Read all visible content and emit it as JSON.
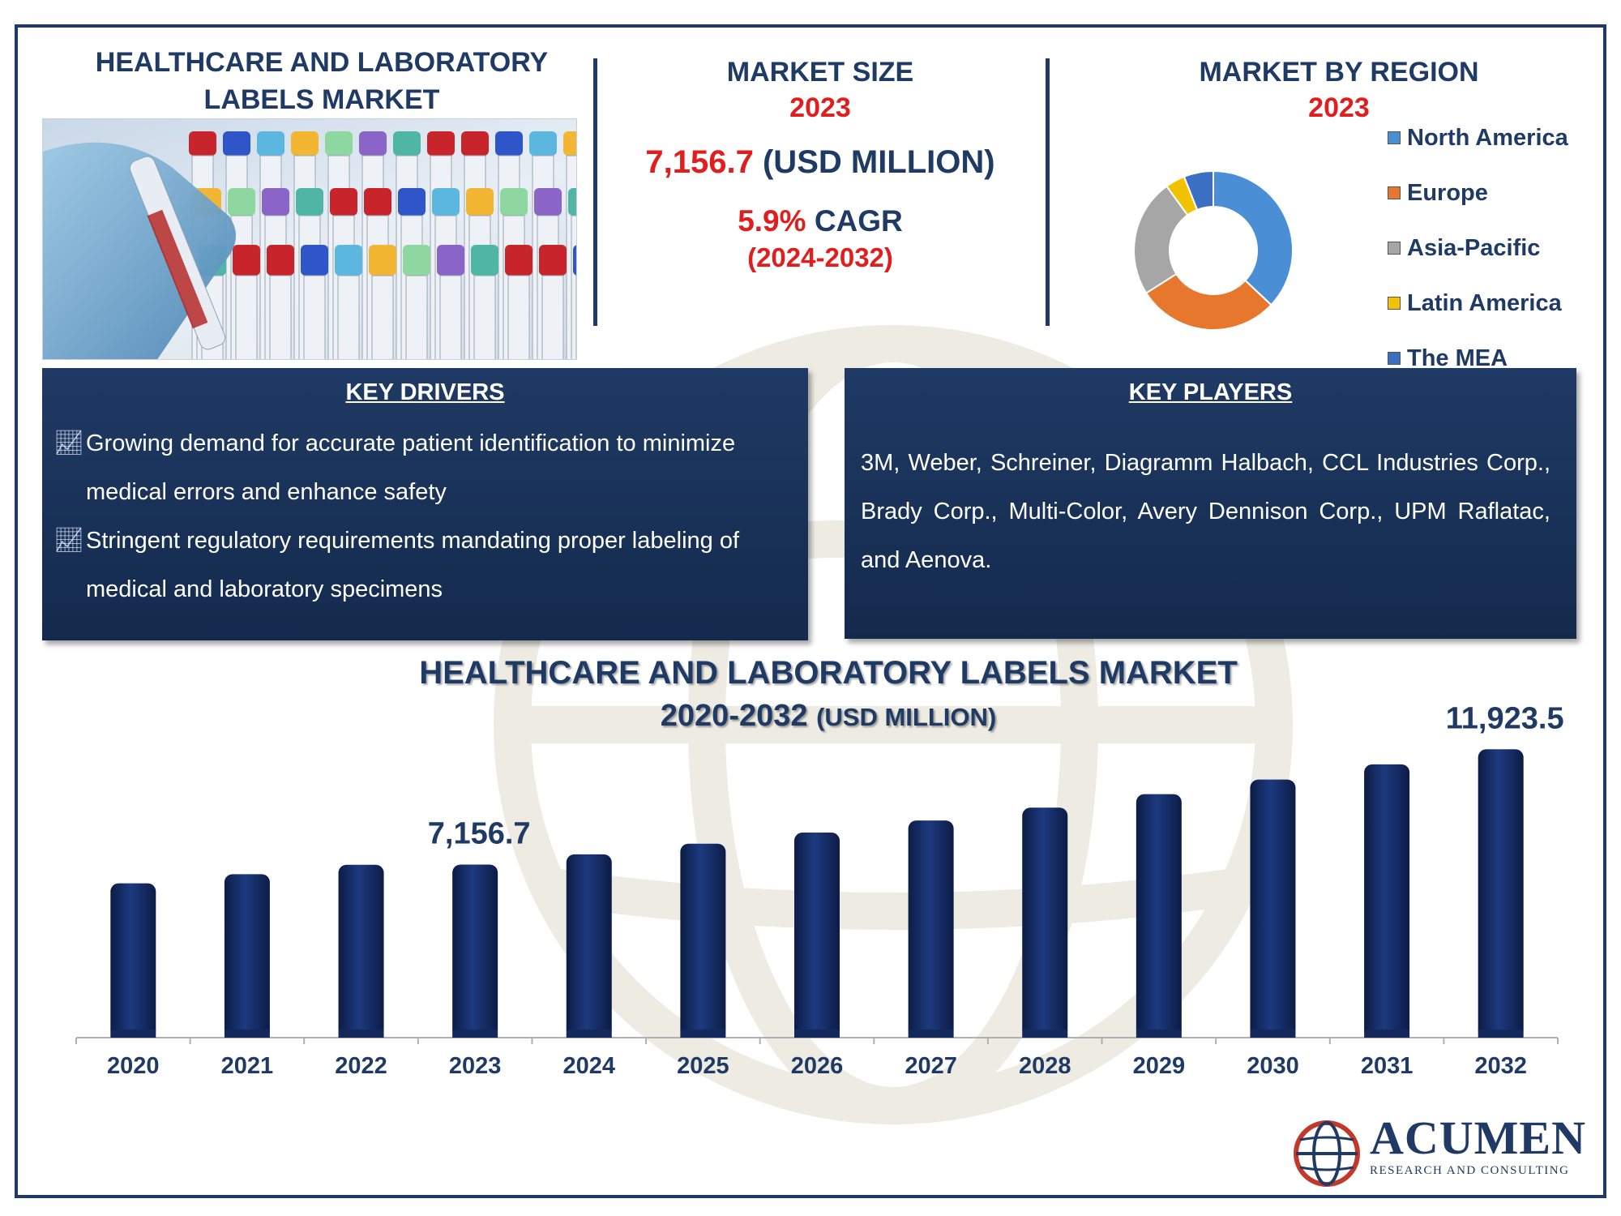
{
  "header": {
    "report_title_line1": "HEALTHCARE AND LABORATORY",
    "report_title_line2": "LABELS MARKET"
  },
  "market_size": {
    "heading": "MARKET SIZE",
    "year": "2023",
    "value": "7,156.7",
    "unit": "(USD MILLION)",
    "cagr_value": "5.9%",
    "cagr_label": "CAGR",
    "cagr_period": "(2024-2032)"
  },
  "region": {
    "heading": "MARKET BY REGION",
    "year": "2023",
    "legend": [
      {
        "label": "North America",
        "color": "#4a8fd6"
      },
      {
        "label": "Europe",
        "color": "#e8772e"
      },
      {
        "label": "Asia-Pacific",
        "color": "#a6a6a6"
      },
      {
        "label": "Latin America",
        "color": "#f2c200"
      },
      {
        "label": "The MEA",
        "color": "#3b6fc4"
      }
    ],
    "shares": [
      37,
      29,
      24,
      4,
      6
    ]
  },
  "drivers": {
    "heading": "KEY DRIVERS",
    "items": [
      "Growing demand for accurate patient identification to minimize medical errors and enhance safety",
      "Stringent regulatory requirements mandating proper labeling of medical and laboratory specimens"
    ]
  },
  "players": {
    "heading": "KEY PLAYERS",
    "text": "3M, Weber, Schreiner, Diagramm Halbach, CCL Industries Corp., Brady Corp., Multi-Color, Avery Dennison Corp., UPM Raflatac, and Aenova."
  },
  "chart_heading": {
    "line1": "HEALTHCARE AND LABORATORY LABELS MARKET",
    "line2_main": "2020-2032",
    "line2_unit": "(USD MILLION)"
  },
  "chart_data": {
    "type": "bar",
    "categories": [
      "2020",
      "2021",
      "2022",
      "2023",
      "2024",
      "2025",
      "2026",
      "2027",
      "2028",
      "2029",
      "2030",
      "2031",
      "2032"
    ],
    "values": [
      6380,
      6760,
      7150,
      7156.7,
      7580,
      8020,
      8480,
      8980,
      9510,
      10070,
      10670,
      11300,
      11923.5
    ],
    "data_labels": {
      "2023": "7,156.7",
      "2032": "11,923.5"
    },
    "ylim": [
      0,
      12000
    ],
    "color": "#13285c"
  },
  "logo": {
    "name": "ACUMEN",
    "tagline": "RESEARCH AND CONSULTING"
  }
}
